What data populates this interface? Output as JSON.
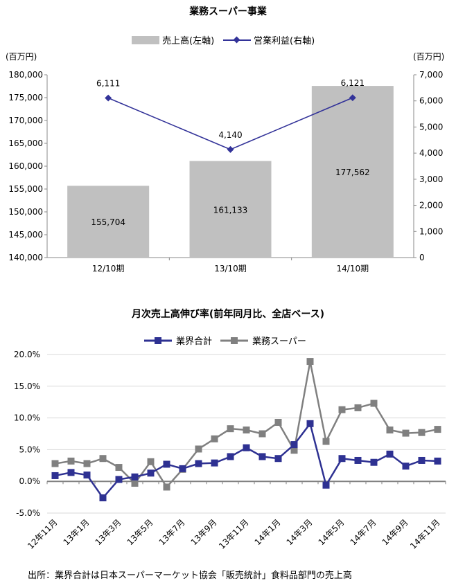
{
  "chart_data": [
    {
      "type": "bar+line",
      "title": "業務スーパー事業",
      "legend": [
        "売上高(左軸)",
        "営業利益(右軸)"
      ],
      "legend_placement": "top",
      "ylabel_left": "(百万円)",
      "ylabel_right": "(百万円)",
      "categories": [
        "12/10期",
        "13/10期",
        "14/10期"
      ],
      "bar_values": [
        155704,
        161133,
        177562
      ],
      "bar_labels": [
        "155,704",
        "161,133",
        "177,562"
      ],
      "line_values": [
        6111,
        4140,
        6121
      ],
      "line_labels": [
        "6,111",
        "4,140",
        "6,121"
      ],
      "ylim_left": [
        140000,
        180000
      ],
      "ylim_right": [
        0,
        7000
      ],
      "left_ticks": [
        "140,000",
        "145,000",
        "150,000",
        "155,000",
        "160,000",
        "165,000",
        "170,000",
        "175,000",
        "180,000"
      ],
      "right_ticks": [
        "0",
        "1,000",
        "2,000",
        "3,000",
        "4,000",
        "5,000",
        "6,000",
        "7,000"
      ],
      "colors": {
        "bar": "#c0c0c0",
        "line": "#333399"
      }
    },
    {
      "type": "line",
      "title": "月次売上高伸び率(前年同月比、全店ベース)",
      "legend_placement": "top",
      "x": [
        "12年11月",
        "12年12月",
        "13年1月",
        "13年2月",
        "13年3月",
        "13年4月",
        "13年5月",
        "13年6月",
        "13年7月",
        "13年8月",
        "13年9月",
        "13年10月",
        "13年11月",
        "13年12月",
        "14年1月",
        "14年2月",
        "14年3月",
        "14年4月",
        "14年5月",
        "14年6月",
        "14年7月",
        "14年8月",
        "14年9月",
        "14年10月",
        "14年11月"
      ],
      "x_tick_labels": [
        "12年11月",
        "13年1月",
        "13年3月",
        "13年5月",
        "13年7月",
        "13年9月",
        "13年11月",
        "14年1月",
        "14年3月",
        "14年5月",
        "14年7月",
        "14年9月",
        "14年11月"
      ],
      "series": [
        {
          "name": "業界合計",
          "color": "#2e3192",
          "values": [
            0.9,
            1.4,
            1.0,
            -2.6,
            0.3,
            0.7,
            1.3,
            2.7,
            2.0,
            2.8,
            2.9,
            3.9,
            5.3,
            3.9,
            3.6,
            5.8,
            9.1,
            -0.6,
            3.6,
            3.3,
            3.0,
            4.3,
            2.4,
            3.3,
            3.2
          ]
        },
        {
          "name": "業務スーパー",
          "color": "#808080",
          "values": [
            2.8,
            3.2,
            2.8,
            3.6,
            2.2,
            -0.3,
            3.1,
            -0.9,
            1.9,
            5.1,
            6.7,
            8.3,
            8.1,
            7.5,
            9.3,
            4.9,
            18.9,
            6.3,
            11.3,
            11.6,
            12.3,
            8.1,
            7.6,
            7.7,
            8.2
          ]
        }
      ],
      "ylim": [
        -5,
        20
      ],
      "y_ticks": [
        "-5.0%",
        "0.0%",
        "5.0%",
        "10.0%",
        "15.0%",
        "20.0%"
      ],
      "grid": true
    }
  ],
  "footnote": "出所：業界合計は日本スーパーマーケット協会「販売統計」食料品部門の売上高"
}
